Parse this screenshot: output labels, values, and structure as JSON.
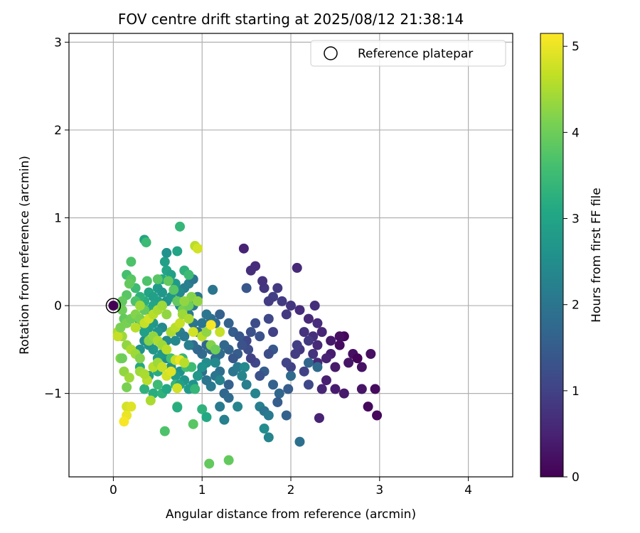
{
  "chart_data": {
    "type": "scatter",
    "title": "FOV centre drift starting at 2025/08/12 21:38:14",
    "xlabel": "Angular distance from reference (arcmin)",
    "ylabel": "Rotation from reference (arcmin)",
    "xlim": [
      -0.5,
      4.5
    ],
    "ylim": [
      -1.95,
      3.1
    ],
    "xticks": [
      0,
      1,
      2,
      3,
      4
    ],
    "yticks": [
      -1,
      0,
      1,
      2,
      3
    ],
    "xtick_labels": [
      "0",
      "1",
      "2",
      "3",
      "4"
    ],
    "ytick_labels": [
      "−1",
      "0",
      "1",
      "2",
      "3"
    ],
    "grid": true,
    "legend": {
      "label": "Reference platepar",
      "position": "top-right"
    },
    "reference_point": {
      "x": 0,
      "y": 0
    },
    "colorbar": {
      "label": "Hours from first FF file",
      "colormap": "viridis",
      "range": [
        0,
        5.15
      ],
      "ticks": [
        0,
        1,
        2,
        3,
        4,
        5
      ],
      "tick_labels": [
        "0",
        "1",
        "2",
        "3",
        "4",
        "5"
      ]
    },
    "points": [
      [
        2.6,
        -0.35,
        0.1
      ],
      [
        2.55,
        -0.45,
        0.15
      ],
      [
        2.7,
        -0.55,
        0.2
      ],
      [
        2.75,
        -0.6,
        0.05
      ],
      [
        2.8,
        -0.7,
        0.25
      ],
      [
        2.65,
        -0.65,
        0.3
      ],
      [
        2.5,
        -0.7,
        0.35
      ],
      [
        2.45,
        -0.55,
        0.4
      ],
      [
        2.9,
        -0.55,
        0.2
      ],
      [
        2.95,
        -0.95,
        0.15
      ],
      [
        2.97,
        -1.25,
        0.1
      ],
      [
        2.87,
        -1.15,
        0.12
      ],
      [
        2.8,
        -0.95,
        0.3
      ],
      [
        2.6,
        -1.0,
        0.35
      ],
      [
        2.5,
        -0.95,
        0.4
      ],
      [
        2.4,
        -0.85,
        0.45
      ],
      [
        2.35,
        -0.95,
        0.55
      ],
      [
        2.55,
        -0.35,
        0.2
      ],
      [
        2.45,
        -0.4,
        0.35
      ],
      [
        2.3,
        -0.45,
        0.6
      ],
      [
        2.25,
        -0.35,
        0.7
      ],
      [
        2.15,
        -0.3,
        0.75
      ],
      [
        2.2,
        -0.15,
        0.6
      ],
      [
        2.1,
        -0.05,
        0.65
      ],
      [
        2.0,
        0.0,
        0.8
      ],
      [
        1.95,
        -0.1,
        0.85
      ],
      [
        1.9,
        0.05,
        0.9
      ],
      [
        1.85,
        0.2,
        0.85
      ],
      [
        1.8,
        0.1,
        0.95
      ],
      [
        1.75,
        0.05,
        0.9
      ],
      [
        1.7,
        0.2,
        0.8
      ],
      [
        1.68,
        0.28,
        0.75
      ],
      [
        1.55,
        0.4,
        0.7
      ],
      [
        1.6,
        0.45,
        0.65
      ],
      [
        1.47,
        0.65,
        0.5
      ],
      [
        2.07,
        0.43,
        0.6
      ],
      [
        2.27,
        0.0,
        0.7
      ],
      [
        2.3,
        -0.2,
        0.65
      ],
      [
        2.35,
        -0.3,
        0.55
      ],
      [
        2.4,
        -0.6,
        0.5
      ],
      [
        2.3,
        -0.65,
        0.6
      ],
      [
        2.25,
        -0.55,
        0.75
      ],
      [
        2.1,
        -0.5,
        0.8
      ],
      [
        2.05,
        -0.55,
        0.9
      ],
      [
        2.0,
        -0.7,
        1.0
      ],
      [
        1.95,
        -0.65,
        1.05
      ],
      [
        2.07,
        -0.45,
        0.95
      ],
      [
        2.2,
        -0.4,
        0.85
      ],
      [
        2.15,
        -0.75,
        1.0
      ],
      [
        2.2,
        -0.9,
        1.1
      ],
      [
        2.1,
        -1.55,
        1.9
      ],
      [
        2.32,
        -1.28,
        0.5
      ],
      [
        2.3,
        -0.7,
        1.8
      ],
      [
        2.2,
        -0.65,
        1.7
      ],
      [
        2.0,
        -0.8,
        1.8
      ],
      [
        1.97,
        -0.95,
        1.5
      ],
      [
        1.95,
        -1.25,
        1.6
      ],
      [
        1.87,
        -1.0,
        1.7
      ],
      [
        1.85,
        -1.1,
        1.5
      ],
      [
        1.8,
        -0.9,
        1.6
      ],
      [
        1.8,
        -0.5,
        1.4
      ],
      [
        1.75,
        -0.55,
        1.2
      ],
      [
        1.7,
        -0.75,
        1.5
      ],
      [
        1.65,
        -0.8,
        1.3
      ],
      [
        1.6,
        -0.65,
        1.1
      ],
      [
        1.55,
        -0.6,
        1.0
      ],
      [
        1.52,
        -0.5,
        1.2
      ],
      [
        1.5,
        -0.4,
        1.1
      ],
      [
        1.45,
        -0.45,
        1.3
      ],
      [
        1.4,
        -0.55,
        1.5
      ],
      [
        1.35,
        -0.6,
        1.4
      ],
      [
        1.3,
        -0.5,
        1.6
      ],
      [
        1.25,
        -0.45,
        1.7
      ],
      [
        1.2,
        -0.55,
        1.8
      ],
      [
        1.15,
        -0.6,
        1.9
      ],
      [
        1.1,
        -0.5,
        1.8
      ],
      [
        1.05,
        -0.45,
        1.7
      ],
      [
        1.0,
        -0.55,
        1.8
      ],
      [
        0.95,
        -0.5,
        1.7
      ],
      [
        0.9,
        -0.45,
        1.8
      ],
      [
        1.3,
        -0.2,
        1.6
      ],
      [
        1.35,
        -0.3,
        1.5
      ],
      [
        1.42,
        -0.35,
        1.4
      ],
      [
        1.6,
        -0.2,
        1.2
      ],
      [
        1.65,
        -0.35,
        1.3
      ],
      [
        1.75,
        -0.15,
        1.1
      ],
      [
        1.8,
        -0.3,
        1.0
      ],
      [
        1.55,
        -0.3,
        1.25
      ],
      [
        1.2,
        -0.1,
        1.6
      ],
      [
        1.15,
        -0.2,
        1.8
      ],
      [
        1.1,
        -0.15,
        1.9
      ],
      [
        1.05,
        -0.1,
        2.0
      ],
      [
        1.0,
        -0.2,
        2.0
      ],
      [
        0.95,
        -0.3,
        1.9
      ],
      [
        0.9,
        -0.2,
        2.0
      ],
      [
        0.85,
        -0.1,
        2.1
      ],
      [
        0.9,
        0.0,
        2.1
      ],
      [
        0.95,
        0.1,
        2.0
      ],
      [
        0.8,
        0.2,
        2.2
      ],
      [
        0.75,
        0.15,
        2.4
      ],
      [
        0.85,
        0.25,
        2.2
      ],
      [
        0.9,
        0.3,
        2.0
      ],
      [
        1.12,
        0.18,
        2.0
      ],
      [
        1.5,
        0.2,
        1.4
      ],
      [
        1.3,
        -0.9,
        1.6
      ],
      [
        1.25,
        -1.0,
        1.7
      ],
      [
        1.3,
        -1.05,
        1.8
      ],
      [
        1.2,
        -0.75,
        1.9
      ],
      [
        1.15,
        -0.8,
        2.0
      ],
      [
        1.1,
        -0.92,
        2.1
      ],
      [
        1.05,
        -0.85,
        2.0
      ],
      [
        1.0,
        -0.75,
        1.9
      ],
      [
        1.2,
        -1.15,
        2.1
      ],
      [
        1.25,
        -1.3,
        2.2
      ],
      [
        1.4,
        -1.15,
        2.3
      ],
      [
        1.65,
        -1.15,
        2.2
      ],
      [
        1.7,
        -1.2,
        2.0
      ],
      [
        1.75,
        -1.25,
        2.1
      ],
      [
        1.7,
        -1.4,
        2.5
      ],
      [
        1.75,
        -1.5,
        2.3
      ],
      [
        1.35,
        -0.75,
        2.0
      ],
      [
        1.4,
        -0.7,
        2.1
      ],
      [
        1.45,
        -0.8,
        2.3
      ],
      [
        1.48,
        -0.7,
        2.4
      ],
      [
        1.6,
        -1.0,
        2.3
      ],
      [
        1.5,
        -0.9,
        2.2
      ],
      [
        1.2,
        -0.85,
        2.3
      ],
      [
        1.15,
        -0.65,
        2.4
      ],
      [
        1.05,
        -0.65,
        2.5
      ],
      [
        1.0,
        -0.7,
        2.6
      ],
      [
        0.95,
        -0.8,
        2.7
      ],
      [
        0.9,
        -0.9,
        2.6
      ],
      [
        0.85,
        -0.95,
        2.8
      ],
      [
        0.8,
        -0.85,
        2.7
      ],
      [
        0.75,
        -0.75,
        2.6
      ],
      [
        0.7,
        -0.8,
        2.8
      ],
      [
        0.65,
        -0.7,
        2.6
      ],
      [
        0.6,
        -0.6,
        2.5
      ],
      [
        0.55,
        -0.55,
        2.7
      ],
      [
        0.5,
        -0.6,
        2.8
      ],
      [
        0.45,
        -0.5,
        2.7
      ],
      [
        0.4,
        -0.45,
        2.6
      ],
      [
        0.35,
        -0.4,
        2.5
      ],
      [
        0.3,
        -0.5,
        2.6
      ],
      [
        0.6,
        -0.4,
        2.4
      ],
      [
        0.65,
        -0.3,
        2.3
      ],
      [
        0.7,
        -0.4,
        2.4
      ],
      [
        0.75,
        -0.3,
        2.2
      ],
      [
        0.8,
        -0.35,
        2.1
      ],
      [
        0.85,
        -0.45,
        2.2
      ],
      [
        0.55,
        -0.25,
        2.4
      ],
      [
        0.5,
        -0.3,
        2.6
      ],
      [
        0.45,
        -0.2,
        2.7
      ],
      [
        0.4,
        -0.25,
        2.8
      ],
      [
        0.35,
        -0.3,
        2.9
      ],
      [
        0.3,
        -0.2,
        2.8
      ],
      [
        0.4,
        0.15,
        3.0
      ],
      [
        0.45,
        0.1,
        2.9
      ],
      [
        0.5,
        0.2,
        2.8
      ],
      [
        0.55,
        0.15,
        2.7
      ],
      [
        0.6,
        0.05,
        2.6
      ],
      [
        0.65,
        0.1,
        2.7
      ],
      [
        0.7,
        0.2,
        2.5
      ],
      [
        0.75,
        0.0,
        2.4
      ],
      [
        0.55,
        0.0,
        2.8
      ],
      [
        0.5,
        0.05,
        2.9
      ],
      [
        0.45,
        0.0,
        3.0
      ],
      [
        0.4,
        -0.05,
        3.1
      ],
      [
        0.35,
        0.05,
        3.2
      ],
      [
        0.3,
        0.1,
        3.3
      ],
      [
        0.55,
        0.3,
        3.1
      ],
      [
        0.6,
        0.4,
        3.0
      ],
      [
        0.65,
        0.35,
        2.9
      ],
      [
        0.7,
        0.25,
        2.8
      ],
      [
        0.58,
        0.5,
        2.9
      ],
      [
        0.72,
        0.62,
        3.0
      ],
      [
        0.75,
        0.9,
        3.4
      ],
      [
        0.35,
        0.75,
        3.0
      ],
      [
        0.37,
        0.72,
        3.5
      ],
      [
        0.8,
        0.4,
        3.3
      ],
      [
        0.85,
        0.35,
        3.5
      ],
      [
        0.6,
        0.6,
        2.6
      ],
      [
        0.45,
        -0.7,
        3.0
      ],
      [
        0.5,
        -0.75,
        3.2
      ],
      [
        0.4,
        -0.8,
        2.9
      ],
      [
        0.3,
        -0.7,
        3.1
      ],
      [
        0.35,
        -0.95,
        3.3
      ],
      [
        0.45,
        -1.0,
        3.2
      ],
      [
        0.5,
        -0.9,
        3.5
      ],
      [
        0.55,
        -1.0,
        3.3
      ],
      [
        0.6,
        -0.95,
        3.1
      ],
      [
        0.65,
        -0.6,
        3.6
      ],
      [
        0.7,
        -0.9,
        3.4
      ],
      [
        0.72,
        -1.15,
        3.6
      ],
      [
        0.75,
        -0.9,
        2.9
      ],
      [
        0.78,
        -0.6,
        3.4
      ],
      [
        0.82,
        -0.7,
        3.6
      ],
      [
        0.88,
        -0.7,
        3.5
      ],
      [
        0.92,
        -0.95,
        3.4
      ],
      [
        0.9,
        -1.35,
        3.8
      ],
      [
        1.0,
        -1.18,
        3.3
      ],
      [
        1.05,
        -1.27,
        3.1
      ],
      [
        0.72,
        -1.16,
        3.2
      ],
      [
        0.58,
        -1.43,
        3.7
      ],
      [
        1.08,
        -1.8,
        3.9
      ],
      [
        1.3,
        -1.76,
        3.9
      ],
      [
        0.2,
        0.5,
        3.7
      ],
      [
        0.15,
        0.35,
        3.6
      ],
      [
        0.2,
        0.3,
        3.8
      ],
      [
        0.25,
        0.2,
        3.5
      ],
      [
        0.18,
        0.25,
        3.9
      ],
      [
        0.15,
        0.12,
        3.8
      ],
      [
        0.25,
        0.05,
        3.7
      ],
      [
        0.1,
        0.05,
        3.9
      ],
      [
        0.1,
        -0.05,
        4.0
      ],
      [
        0.12,
        -0.15,
        3.9
      ],
      [
        0.15,
        -0.2,
        4.1
      ],
      [
        0.2,
        -0.15,
        4.0
      ],
      [
        0.25,
        -0.1,
        4.2
      ],
      [
        0.3,
        -0.15,
        4.1
      ],
      [
        0.35,
        -0.05,
        3.9
      ],
      [
        0.38,
        0.28,
        3.7
      ],
      [
        0.5,
        0.3,
        3.8
      ],
      [
        0.62,
        0.28,
        3.9
      ],
      [
        0.68,
        0.18,
        3.8
      ],
      [
        0.72,
        0.05,
        3.9
      ],
      [
        0.78,
        -0.05,
        4.1
      ],
      [
        0.85,
        0.0,
        4.0
      ],
      [
        0.88,
        0.1,
        4.2
      ],
      [
        0.95,
        0.05,
        4.3
      ],
      [
        0.92,
        0.68,
        4.6
      ],
      [
        0.95,
        0.65,
        4.8
      ],
      [
        0.8,
        0.05,
        4.3
      ],
      [
        0.1,
        -0.35,
        4.4
      ],
      [
        0.15,
        -0.45,
        4.3
      ],
      [
        0.2,
        -0.5,
        4.5
      ],
      [
        0.25,
        -0.55,
        4.4
      ],
      [
        0.08,
        -0.6,
        4.2
      ],
      [
        0.12,
        -0.75,
        4.3
      ],
      [
        0.18,
        -0.82,
        4.4
      ],
      [
        0.15,
        -0.93,
        4.1
      ],
      [
        0.1,
        -0.6,
        4.0
      ],
      [
        0.3,
        -0.6,
        4.2
      ],
      [
        0.3,
        -0.75,
        4.4
      ],
      [
        0.38,
        -0.85,
        4.6
      ],
      [
        0.35,
        -0.78,
        4.5
      ],
      [
        0.45,
        -0.7,
        4.6
      ],
      [
        0.5,
        -0.65,
        4.4
      ],
      [
        0.55,
        -0.7,
        4.7
      ],
      [
        0.6,
        -0.8,
        4.8
      ],
      [
        0.65,
        -0.75,
        4.9
      ],
      [
        0.7,
        -0.62,
        4.7
      ],
      [
        0.75,
        -0.62,
        5.0
      ],
      [
        0.8,
        -0.65,
        4.6
      ],
      [
        0.72,
        -0.94,
        4.8
      ],
      [
        0.4,
        -0.4,
        4.2
      ],
      [
        0.45,
        -0.35,
        4.3
      ],
      [
        0.5,
        -0.4,
        4.5
      ],
      [
        0.55,
        -0.45,
        4.4
      ],
      [
        0.6,
        -0.5,
        4.6
      ],
      [
        0.65,
        -0.3,
        4.5
      ],
      [
        0.7,
        -0.25,
        4.6
      ],
      [
        0.75,
        -0.2,
        4.7
      ],
      [
        0.78,
        -0.1,
        4.4
      ],
      [
        0.85,
        -0.15,
        4.5
      ],
      [
        0.9,
        -0.3,
        4.8
      ],
      [
        1.0,
        -0.35,
        4.6
      ],
      [
        1.05,
        -0.3,
        4.3
      ],
      [
        1.1,
        -0.45,
        4.2
      ],
      [
        1.15,
        -0.5,
        4.0
      ],
      [
        1.1,
        -0.22,
        5.1
      ],
      [
        1.2,
        -0.3,
        4.7
      ],
      [
        0.35,
        -0.2,
        4.7
      ],
      [
        0.4,
        -0.15,
        4.8
      ],
      [
        0.45,
        -0.1,
        4.6
      ],
      [
        0.5,
        -0.05,
        4.5
      ],
      [
        0.55,
        0.0,
        4.4
      ],
      [
        0.6,
        -0.1,
        4.3
      ],
      [
        0.3,
        0.0,
        4.4
      ],
      [
        0.25,
        -0.25,
        4.6
      ],
      [
        0.05,
        -0.3,
        4.5
      ],
      [
        0.05,
        -0.35,
        4.7
      ],
      [
        0.15,
        -1.15,
        4.8
      ],
      [
        0.2,
        -1.15,
        4.9
      ],
      [
        0.15,
        -1.25,
        5.0
      ],
      [
        0.12,
        -1.32,
        5.1
      ],
      [
        0.42,
        -1.08,
        4.5
      ],
      [
        0.08,
        -0.25,
        4.1
      ]
    ]
  }
}
